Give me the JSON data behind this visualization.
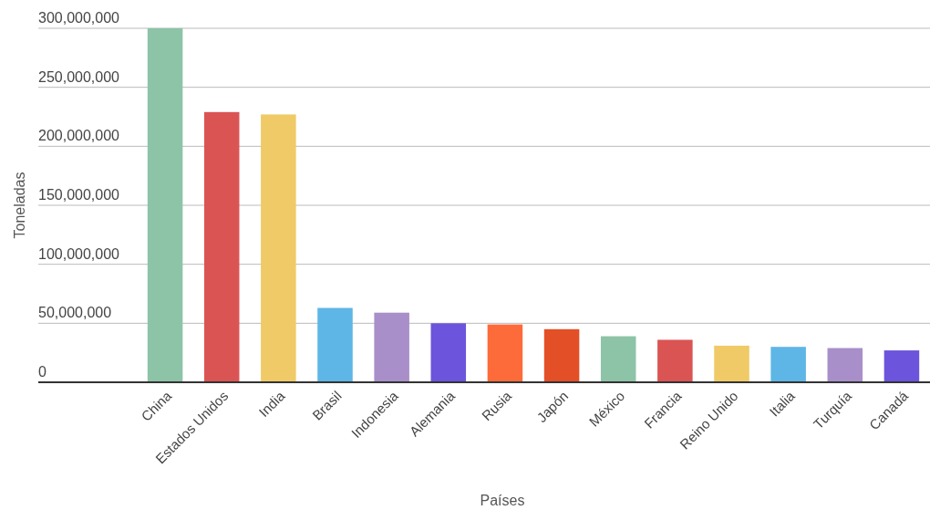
{
  "chart_data": {
    "type": "bar",
    "xlabel": "Países",
    "ylabel": "Toneladas",
    "categories": [
      "China",
      "Estados Unidos",
      "India",
      "Brasil",
      "Indonesia",
      "Alemania",
      "Rusia",
      "Japón",
      "México",
      "Francia",
      "Reino Unido",
      "Italia",
      "Turquía",
      "Canadá"
    ],
    "values": [
      300000000,
      229000000,
      227000000,
      63000000,
      59000000,
      50000000,
      49000000,
      45000000,
      39000000,
      36000000,
      31000000,
      30000000,
      29000000,
      27000000
    ],
    "colors": [
      "#8dc3a7",
      "#db5454",
      "#efca67",
      "#5db6e6",
      "#a98fc9",
      "#6c54dc",
      "#fd6b3a",
      "#e34f26",
      "#8dc3a7",
      "#db5454",
      "#efca67",
      "#5db6e6",
      "#a98fc9",
      "#6c54dc"
    ],
    "ylim": [
      0,
      300000000
    ],
    "yticks": [
      {
        "value": 0,
        "label": "0"
      },
      {
        "value": 50000000,
        "label": "50,000,000"
      },
      {
        "value": 100000000,
        "label": "100,000,000"
      },
      {
        "value": 150000000,
        "label": "150,000,000"
      },
      {
        "value": 200000000,
        "label": "200,000,000"
      },
      {
        "value": 250000000,
        "label": "250,000,000"
      },
      {
        "value": 300000000,
        "label": "300,000,000"
      }
    ],
    "grid": "y"
  }
}
